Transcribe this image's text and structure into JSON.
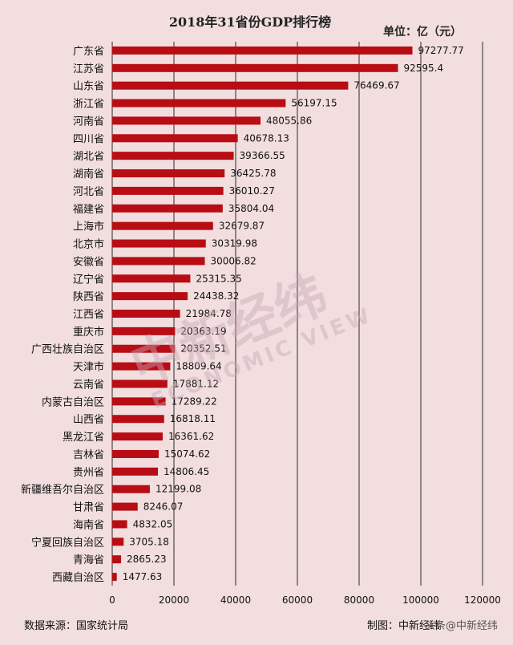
{
  "chart_data": {
    "type": "bar",
    "orientation": "horizontal",
    "title": "2018年31省份GDP排行榜",
    "unit_label": "单位：亿（元）",
    "categories": [
      "广东省",
      "江苏省",
      "山东省",
      "浙江省",
      "河南省",
      "四川省",
      "湖北省",
      "湖南省",
      "河北省",
      "福建省",
      "上海市",
      "北京市",
      "安徽省",
      "辽宁省",
      "陕西省",
      "江西省",
      "重庆市",
      "广西壮族自治区",
      "天津市",
      "云南省",
      "内蒙古自治区",
      "山西省",
      "黑龙江省",
      "吉林省",
      "贵州省",
      "新疆维吾尔自治区",
      "甘肃省",
      "海南省",
      "宁夏回族自治区",
      "青海省",
      "西藏自治区"
    ],
    "values": [
      97277.77,
      92595.4,
      76469.67,
      56197.15,
      48055.86,
      40678.13,
      39366.55,
      36425.78,
      36010.27,
      35804.04,
      32679.87,
      30319.98,
      30006.82,
      25315.35,
      24438.32,
      21984.78,
      20363.19,
      20352.51,
      18809.64,
      17881.12,
      17289.22,
      16818.11,
      16361.62,
      15074.62,
      14806.45,
      12199.08,
      8246.07,
      4832.05,
      3705.18,
      2865.23,
      1477.63
    ],
    "value_labels": [
      "97277.77",
      "92595.4",
      "76469.67",
      "56197.15",
      "48055.86",
      "40678.13",
      "39366.55",
      "36425.78",
      "36010.27",
      "35804.04",
      "32679.87",
      "30319.98",
      "30006.82",
      "25315.35",
      "24438.32",
      "21984.78",
      "20363.19",
      "20352.51",
      "18809.64",
      "17881.12",
      "17289.22",
      "16818.11",
      "16361.62",
      "15074.62",
      "14806.45",
      "12199.08",
      "8246.07",
      "4832.05",
      "3705.18",
      "2865.23",
      "1477.63"
    ],
    "xlim": [
      0,
      120000
    ],
    "x_ticks": [
      0,
      20000,
      40000,
      60000,
      80000,
      100000,
      120000
    ],
    "x_tick_labels": [
      "0",
      "20000",
      "40000",
      "60000",
      "80000",
      "100000",
      "120000"
    ],
    "grid": "vertical",
    "bar_color": "#b80d14",
    "background_color": "#f2dede"
  },
  "footer": {
    "source": "数据来源：国家统计局",
    "credit": "制图：中新经纬",
    "overlay": "头条@中新经纬"
  },
  "watermark": {
    "cn": "中新经纬",
    "en": "ECONOMIC VIEW"
  }
}
